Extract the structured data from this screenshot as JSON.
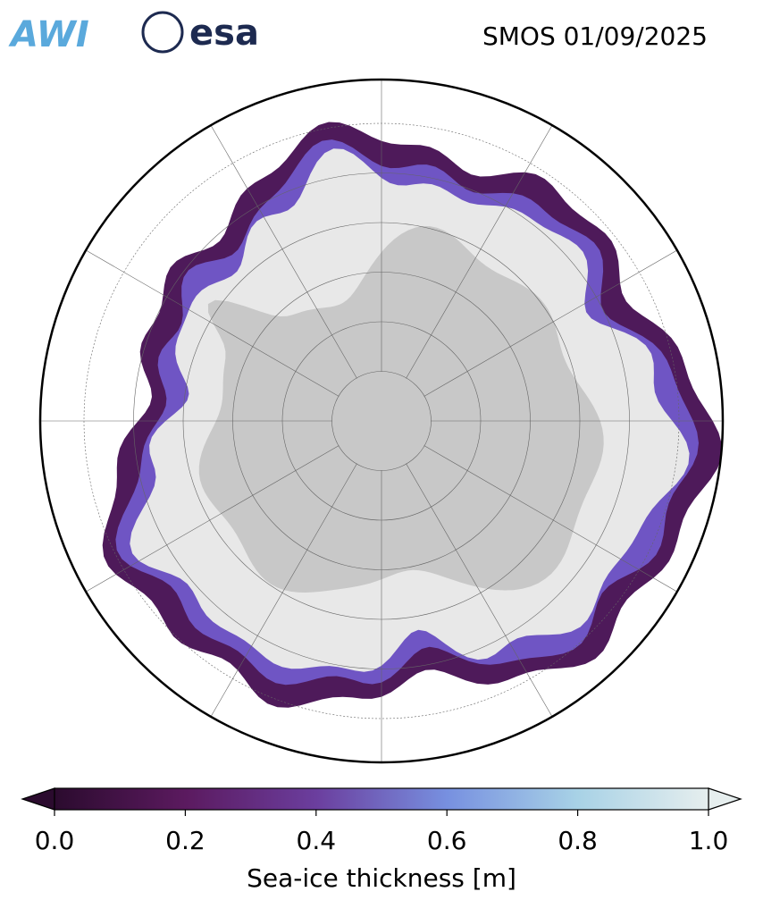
{
  "header": {
    "logos": [
      "AWI",
      "esa"
    ],
    "title": "SMOS 01/09/2025"
  },
  "colorbar": {
    "label": "Sea-ice thickness [m]",
    "lim": [
      0,
      1
    ],
    "ticks": [
      {
        "value": 0,
        "label": "0.0"
      },
      {
        "value": 0.2,
        "label": "0.2"
      },
      {
        "value": 0.4,
        "label": "0.4"
      },
      {
        "value": 0.6,
        "label": "0.6"
      },
      {
        "value": 0.8,
        "label": "0.8"
      },
      {
        "value": 1,
        "label": "1.0"
      }
    ],
    "colors": [
      "#2b0b2e",
      "#5b1a5f",
      "#6b3e9e",
      "#7790e0",
      "#a8d2e6",
      "#e6eeee"
    ]
  }
}
